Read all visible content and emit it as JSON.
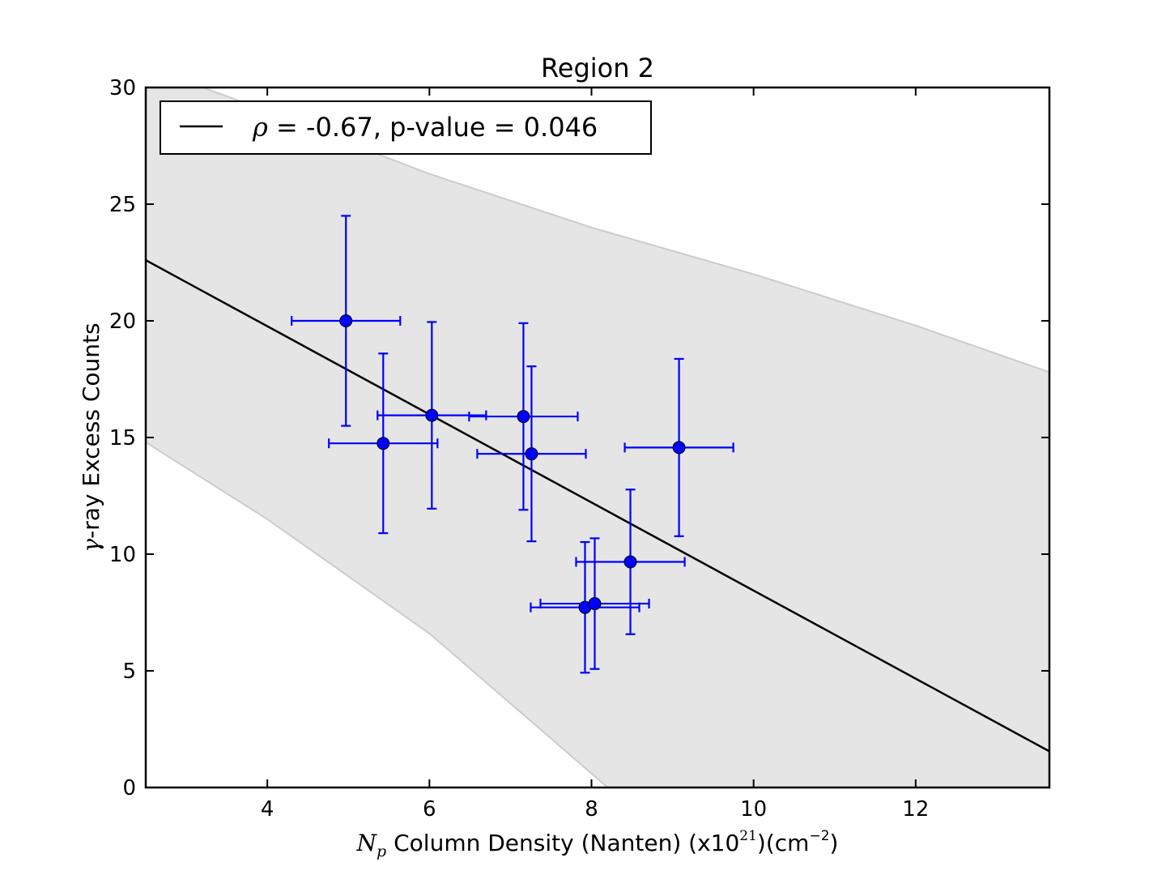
{
  "chart_data": {
    "type": "scatter",
    "title": "Region 2",
    "xlabel": {
      "symbol": "N",
      "subscript": "p",
      "text": " Column Density (Nanten) (x10",
      "exp1": "21",
      "mid": ")(cm",
      "exp2": "−2",
      "end": ")"
    },
    "ylabel": {
      "symbol": "γ",
      "text": "-ray Excess Counts"
    },
    "xlim": [
      2.5,
      13.65
    ],
    "ylim": [
      0,
      30
    ],
    "xticks": [
      4,
      6,
      8,
      10,
      12
    ],
    "yticks": [
      0,
      5,
      10,
      15,
      20,
      25,
      30
    ],
    "grid": false,
    "legend": {
      "position": "top-left",
      "symbol": "ρ",
      "text": " = -0.67, p-value = 0.046"
    },
    "colors": {
      "points": "#0000ff",
      "fit": "#000000",
      "band": "#e5e5e5",
      "band_edge": "#cccccc"
    },
    "points": [
      {
        "x": 4.97,
        "y": 20.0,
        "xerr": 0.67,
        "yerr": 4.5
      },
      {
        "x": 5.43,
        "y": 14.75,
        "xerr": 0.67,
        "yerr": 3.85
      },
      {
        "x": 6.03,
        "y": 15.95,
        "xerr": 0.67,
        "yerr": 4.0
      },
      {
        "x": 7.16,
        "y": 15.9,
        "xerr": 0.67,
        "yerr": 4.0
      },
      {
        "x": 7.26,
        "y": 14.3,
        "xerr": 0.67,
        "yerr": 3.75
      },
      {
        "x": 9.08,
        "y": 14.57,
        "xerr": 0.67,
        "yerr": 3.8
      },
      {
        "x": 8.48,
        "y": 9.67,
        "xerr": 0.67,
        "yerr": 3.1
      },
      {
        "x": 7.92,
        "y": 7.72,
        "xerr": 0.67,
        "yerr": 2.8
      },
      {
        "x": 8.04,
        "y": 7.88,
        "xerr": 0.67,
        "yerr": 2.8
      }
    ],
    "fit_line": [
      {
        "x": 2.5,
        "y": 22.6
      },
      {
        "x": 13.65,
        "y": 1.55
      }
    ],
    "band_upper": [
      {
        "x": 2.5,
        "y": 30.9
      },
      {
        "x": 3.6,
        "y": 29.5
      },
      {
        "x": 6.0,
        "y": 26.3
      },
      {
        "x": 8.0,
        "y": 24.0
      },
      {
        "x": 10.0,
        "y": 22.0
      },
      {
        "x": 12.0,
        "y": 19.8
      },
      {
        "x": 13.65,
        "y": 17.8
      }
    ],
    "band_lower": [
      {
        "x": 2.5,
        "y": 14.8
      },
      {
        "x": 4.0,
        "y": 11.5
      },
      {
        "x": 6.0,
        "y": 6.6
      },
      {
        "x": 8.0,
        "y": 0.6
      },
      {
        "x": 8.2,
        "y": 0.0
      }
    ]
  }
}
